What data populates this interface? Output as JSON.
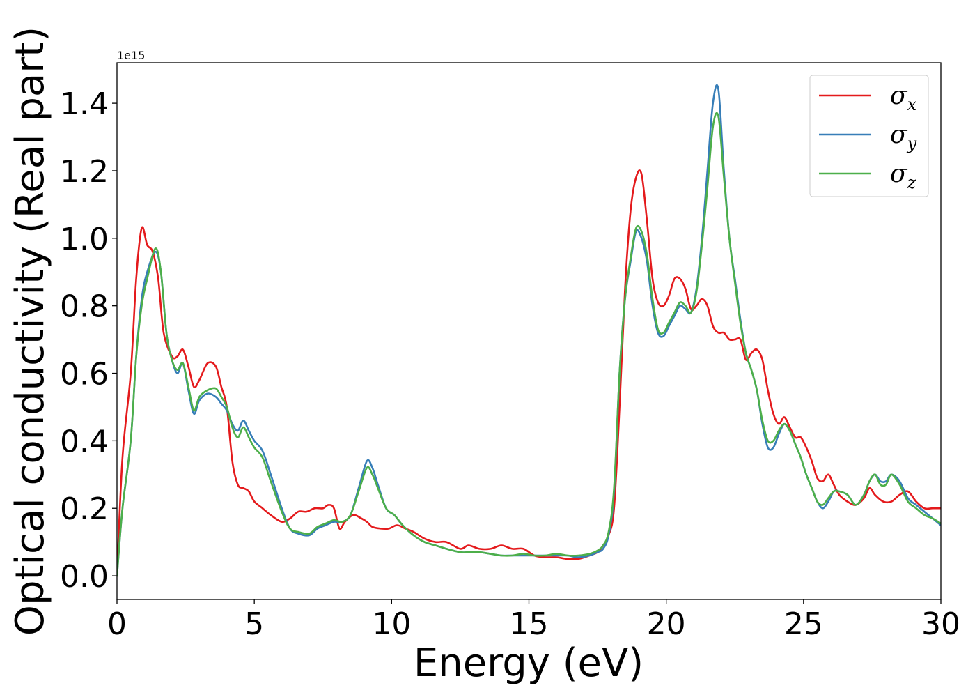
{
  "chart_data": {
    "type": "line",
    "xlabel": "Energy (eV)",
    "ylabel": "Optical conductivity (Real part)",
    "y_offset_text": "1e15",
    "y_multiplier": 1000000000000000.0,
    "xlim": [
      0,
      30
    ],
    "ylim": [
      -0.07,
      1.52
    ],
    "xticks": [
      0,
      5,
      10,
      15,
      20,
      25,
      30
    ],
    "xtick_labels": [
      "0",
      "5",
      "10",
      "15",
      "20",
      "25",
      "30"
    ],
    "yticks": [
      0.0,
      0.2,
      0.4,
      0.6,
      0.8,
      1.0,
      1.2,
      1.4
    ],
    "ytick_labels": [
      "0.0",
      "0.2",
      "0.4",
      "0.6",
      "0.8",
      "1.0",
      "1.2",
      "1.4"
    ],
    "grid": false,
    "legend": "top-right",
    "series": [
      {
        "name": "σ",
        "subscript": "x",
        "color": "#e41a1c",
        "x": [
          0.0,
          0.2,
          0.5,
          0.7,
          0.9,
          1.1,
          1.3,
          1.5,
          1.7,
          2.0,
          2.2,
          2.4,
          2.6,
          2.8,
          3.0,
          3.3,
          3.6,
          3.8,
          4.0,
          4.2,
          4.4,
          4.6,
          4.8,
          5.0,
          5.3,
          5.6,
          6.0,
          6.3,
          6.6,
          6.9,
          7.2,
          7.5,
          7.7,
          7.9,
          8.1,
          8.3,
          8.6,
          8.9,
          9.1,
          9.3,
          9.6,
          9.9,
          10.2,
          10.5,
          10.8,
          11.2,
          11.6,
          12.0,
          12.5,
          12.8,
          13.2,
          13.6,
          14.0,
          14.4,
          14.8,
          15.2,
          15.6,
          16.0,
          16.4,
          16.8,
          17.2,
          17.5,
          17.7,
          17.9,
          18.1,
          18.3,
          18.5,
          18.7,
          18.9,
          19.1,
          19.3,
          19.5,
          19.7,
          19.9,
          20.1,
          20.3,
          20.5,
          20.7,
          20.9,
          21.1,
          21.3,
          21.5,
          21.7,
          21.9,
          22.1,
          22.3,
          22.5,
          22.7,
          22.9,
          23.1,
          23.3,
          23.5,
          23.7,
          23.9,
          24.1,
          24.3,
          24.5,
          24.7,
          24.9,
          25.1,
          25.3,
          25.5,
          25.7,
          25.9,
          26.1,
          26.3,
          26.6,
          26.9,
          27.2,
          27.4,
          27.6,
          27.9,
          28.2,
          28.5,
          28.8,
          29.1,
          29.4,
          29.7,
          30.0
        ],
        "y": [
          0.0,
          0.35,
          0.6,
          0.88,
          1.03,
          0.98,
          0.96,
          0.88,
          0.72,
          0.65,
          0.65,
          0.67,
          0.62,
          0.56,
          0.58,
          0.63,
          0.62,
          0.56,
          0.5,
          0.34,
          0.27,
          0.26,
          0.25,
          0.22,
          0.2,
          0.18,
          0.16,
          0.17,
          0.19,
          0.19,
          0.2,
          0.2,
          0.21,
          0.2,
          0.14,
          0.16,
          0.18,
          0.17,
          0.16,
          0.145,
          0.14,
          0.14,
          0.15,
          0.14,
          0.13,
          0.11,
          0.1,
          0.1,
          0.08,
          0.09,
          0.08,
          0.08,
          0.09,
          0.08,
          0.08,
          0.06,
          0.055,
          0.055,
          0.05,
          0.05,
          0.06,
          0.07,
          0.09,
          0.12,
          0.2,
          0.5,
          0.85,
          1.08,
          1.18,
          1.19,
          1.05,
          0.88,
          0.81,
          0.8,
          0.83,
          0.88,
          0.88,
          0.85,
          0.79,
          0.8,
          0.82,
          0.8,
          0.74,
          0.72,
          0.72,
          0.7,
          0.7,
          0.7,
          0.64,
          0.66,
          0.67,
          0.64,
          0.55,
          0.48,
          0.45,
          0.47,
          0.44,
          0.41,
          0.41,
          0.38,
          0.34,
          0.29,
          0.28,
          0.3,
          0.27,
          0.24,
          0.22,
          0.21,
          0.23,
          0.26,
          0.24,
          0.22,
          0.22,
          0.24,
          0.25,
          0.22,
          0.2,
          0.2,
          0.2
        ]
      },
      {
        "name": "σ",
        "subscript": "y",
        "color": "#377eb8",
        "x": [
          0.0,
          0.2,
          0.5,
          0.7,
          0.9,
          1.1,
          1.4,
          1.6,
          1.8,
          2.0,
          2.2,
          2.4,
          2.6,
          2.8,
          3.0,
          3.3,
          3.6,
          3.8,
          4.0,
          4.2,
          4.4,
          4.6,
          4.8,
          5.0,
          5.3,
          5.6,
          6.0,
          6.3,
          6.6,
          7.0,
          7.3,
          7.6,
          7.9,
          8.2,
          8.5,
          8.8,
          9.1,
          9.3,
          9.5,
          9.8,
          10.1,
          10.4,
          10.8,
          11.2,
          11.6,
          12.0,
          12.5,
          12.8,
          13.2,
          13.6,
          14.0,
          14.4,
          14.8,
          15.2,
          15.6,
          16.0,
          16.4,
          16.8,
          17.2,
          17.5,
          17.7,
          17.9,
          18.1,
          18.3,
          18.5,
          18.7,
          18.9,
          19.1,
          19.3,
          19.5,
          19.7,
          19.9,
          20.1,
          20.3,
          20.5,
          20.7,
          20.9,
          21.1,
          21.3,
          21.5,
          21.7,
          21.9,
          22.1,
          22.3,
          22.5,
          22.7,
          22.9,
          23.1,
          23.3,
          23.5,
          23.7,
          23.9,
          24.1,
          24.3,
          24.5,
          24.7,
          24.9,
          25.1,
          25.3,
          25.5,
          25.7,
          25.9,
          26.1,
          26.3,
          26.6,
          26.9,
          27.2,
          27.4,
          27.6,
          27.8,
          28.0,
          28.2,
          28.5,
          28.8,
          29.1,
          29.4,
          29.7,
          30.0
        ],
        "y": [
          0.0,
          0.2,
          0.4,
          0.65,
          0.82,
          0.9,
          0.96,
          0.9,
          0.72,
          0.64,
          0.6,
          0.63,
          0.55,
          0.48,
          0.52,
          0.54,
          0.53,
          0.51,
          0.49,
          0.45,
          0.43,
          0.46,
          0.43,
          0.4,
          0.37,
          0.3,
          0.2,
          0.14,
          0.125,
          0.12,
          0.14,
          0.15,
          0.16,
          0.16,
          0.18,
          0.26,
          0.34,
          0.32,
          0.27,
          0.2,
          0.18,
          0.15,
          0.12,
          0.1,
          0.09,
          0.08,
          0.07,
          0.07,
          0.07,
          0.065,
          0.06,
          0.06,
          0.06,
          0.06,
          0.06,
          0.06,
          0.06,
          0.055,
          0.06,
          0.07,
          0.08,
          0.12,
          0.25,
          0.6,
          0.82,
          0.93,
          1.02,
          1.0,
          0.93,
          0.8,
          0.72,
          0.71,
          0.74,
          0.77,
          0.8,
          0.79,
          0.78,
          0.85,
          1.0,
          1.2,
          1.4,
          1.44,
          1.2,
          1.0,
          0.88,
          0.76,
          0.66,
          0.61,
          0.55,
          0.45,
          0.38,
          0.38,
          0.42,
          0.45,
          0.43,
          0.39,
          0.35,
          0.3,
          0.26,
          0.22,
          0.2,
          0.22,
          0.25,
          0.25,
          0.24,
          0.21,
          0.24,
          0.28,
          0.3,
          0.28,
          0.28,
          0.3,
          0.28,
          0.23,
          0.21,
          0.19,
          0.17,
          0.15
        ]
      },
      {
        "name": "σ",
        "subscript": "z",
        "color": "#4daf4a",
        "x": [
          0.0,
          0.2,
          0.5,
          0.7,
          0.9,
          1.1,
          1.4,
          1.6,
          1.8,
          2.0,
          2.2,
          2.4,
          2.6,
          2.8,
          3.0,
          3.3,
          3.6,
          3.8,
          4.0,
          4.2,
          4.4,
          4.6,
          4.8,
          5.0,
          5.3,
          5.6,
          6.0,
          6.3,
          6.6,
          7.0,
          7.3,
          7.6,
          7.9,
          8.2,
          8.5,
          8.8,
          9.1,
          9.3,
          9.5,
          9.8,
          10.1,
          10.4,
          10.8,
          11.2,
          11.6,
          12.0,
          12.5,
          12.8,
          13.2,
          13.6,
          14.0,
          14.4,
          14.8,
          15.2,
          15.6,
          16.0,
          16.4,
          16.8,
          17.2,
          17.5,
          17.7,
          17.9,
          18.1,
          18.3,
          18.5,
          18.7,
          18.9,
          19.1,
          19.3,
          19.5,
          19.7,
          19.9,
          20.1,
          20.3,
          20.5,
          20.7,
          20.9,
          21.1,
          21.3,
          21.5,
          21.7,
          21.9,
          22.1,
          22.3,
          22.5,
          22.7,
          22.9,
          23.1,
          23.3,
          23.5,
          23.7,
          23.9,
          24.1,
          24.3,
          24.5,
          24.7,
          24.9,
          25.1,
          25.3,
          25.5,
          25.7,
          25.9,
          26.1,
          26.3,
          26.6,
          26.9,
          27.2,
          27.4,
          27.6,
          27.8,
          28.0,
          28.2,
          28.5,
          28.8,
          29.1,
          29.4,
          29.7,
          30.0
        ],
        "y": [
          0.0,
          0.2,
          0.4,
          0.65,
          0.8,
          0.88,
          0.97,
          0.9,
          0.72,
          0.64,
          0.61,
          0.63,
          0.56,
          0.49,
          0.53,
          0.55,
          0.555,
          0.53,
          0.5,
          0.44,
          0.41,
          0.44,
          0.41,
          0.38,
          0.35,
          0.28,
          0.19,
          0.14,
          0.13,
          0.125,
          0.145,
          0.155,
          0.165,
          0.16,
          0.18,
          0.25,
          0.32,
          0.3,
          0.26,
          0.2,
          0.18,
          0.15,
          0.12,
          0.1,
          0.09,
          0.08,
          0.07,
          0.07,
          0.07,
          0.065,
          0.06,
          0.06,
          0.065,
          0.06,
          0.06,
          0.065,
          0.06,
          0.06,
          0.065,
          0.075,
          0.09,
          0.13,
          0.26,
          0.6,
          0.82,
          0.94,
          1.03,
          1.02,
          0.95,
          0.82,
          0.73,
          0.72,
          0.75,
          0.78,
          0.81,
          0.8,
          0.78,
          0.84,
          0.98,
          1.15,
          1.33,
          1.36,
          1.18,
          1.0,
          0.87,
          0.75,
          0.66,
          0.61,
          0.55,
          0.46,
          0.4,
          0.4,
          0.43,
          0.45,
          0.43,
          0.39,
          0.35,
          0.3,
          0.26,
          0.22,
          0.21,
          0.23,
          0.25,
          0.25,
          0.24,
          0.21,
          0.24,
          0.28,
          0.3,
          0.27,
          0.27,
          0.3,
          0.27,
          0.22,
          0.2,
          0.18,
          0.17,
          0.155
        ]
      }
    ]
  }
}
